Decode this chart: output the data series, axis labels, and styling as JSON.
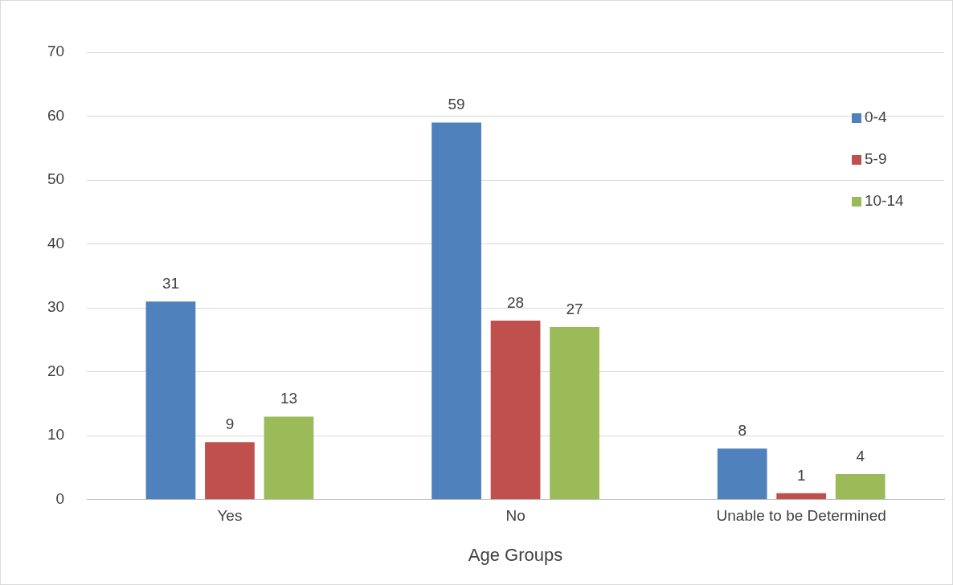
{
  "chart_data": {
    "type": "bar",
    "xlabel": "Age Groups",
    "categories": [
      "Yes",
      "No",
      "Unable to be Determined"
    ],
    "series": [
      {
        "name": "0-4",
        "color": "#4f81bd",
        "values": [
          31,
          59,
          8
        ]
      },
      {
        "name": "5-9",
        "color": "#c0504d",
        "values": [
          9,
          28,
          1
        ]
      },
      {
        "name": "10-14",
        "color": "#9bbb59",
        "values": [
          13,
          27,
          4
        ]
      }
    ],
    "ylim": [
      0,
      70
    ],
    "yticks": [
      0,
      10,
      20,
      30,
      40,
      50,
      60,
      70
    ],
    "grid": "y",
    "legend": "top right",
    "data_labels": true
  }
}
